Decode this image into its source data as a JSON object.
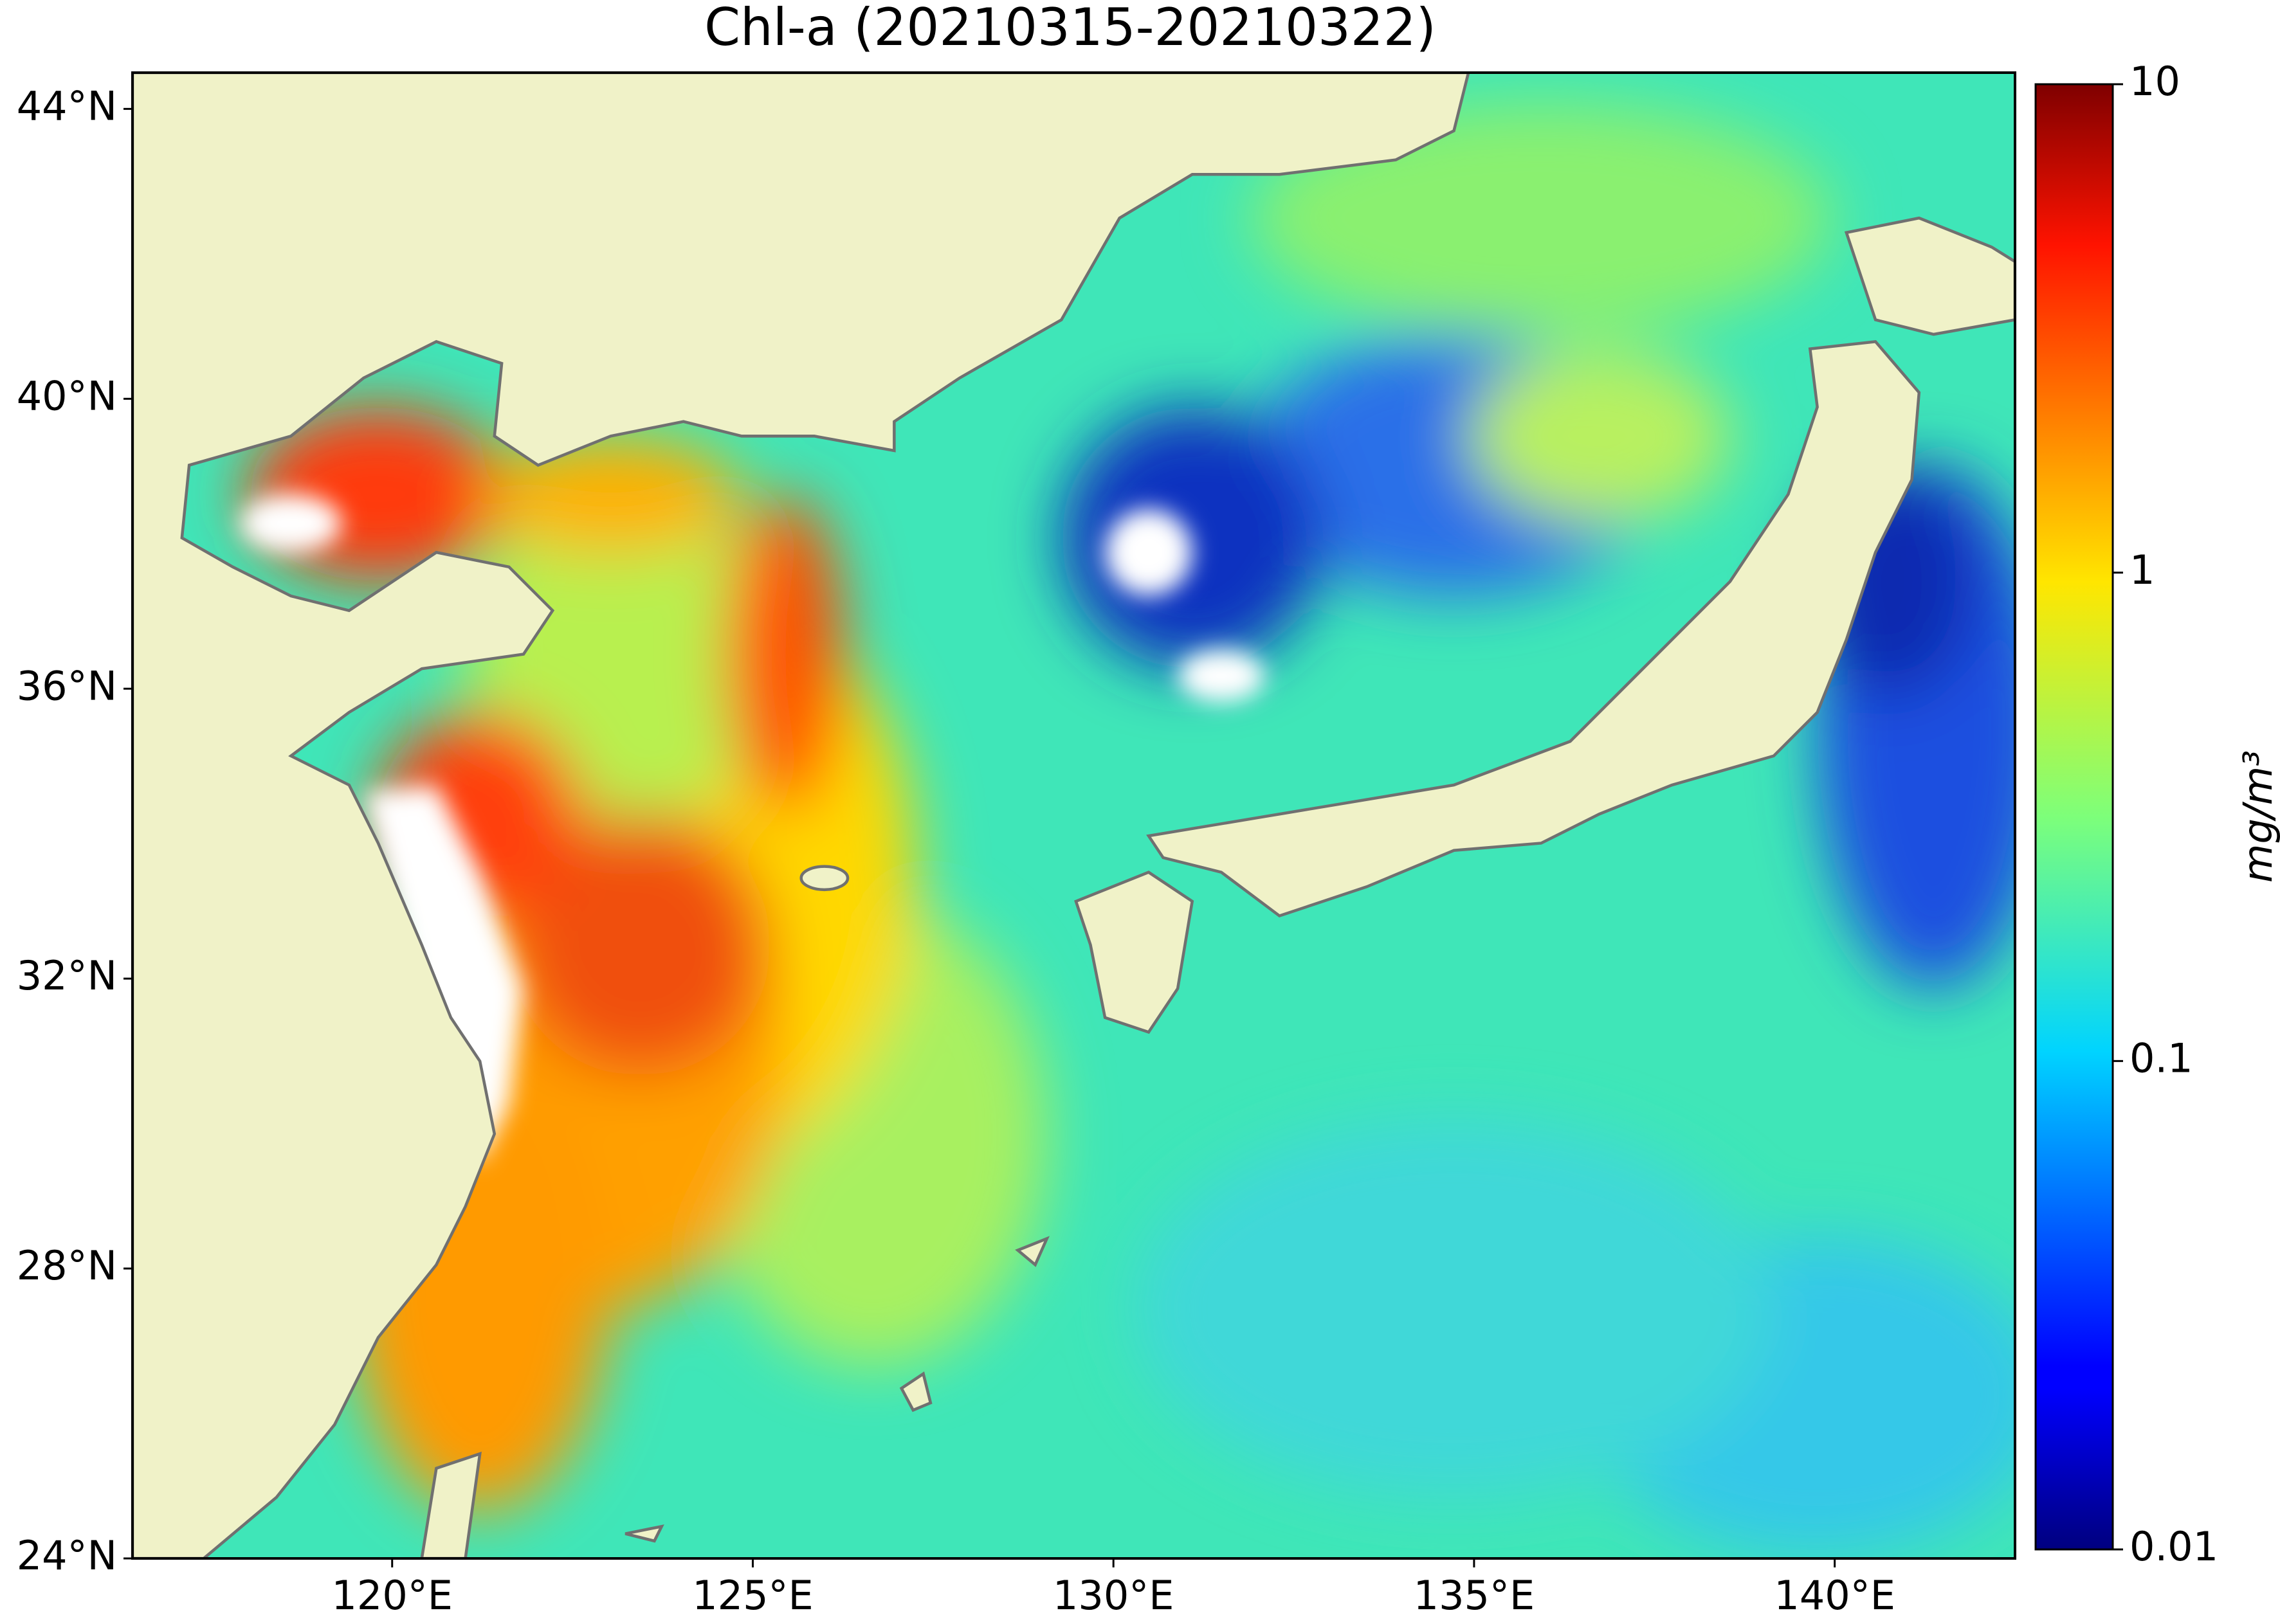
{
  "map": {
    "title": "Chl-a (20210315-20210322)",
    "xlim": [
      116.4,
      142.5
    ],
    "ylim": [
      24,
      44.5
    ],
    "xticks": [
      {
        "value": 120,
        "label": "120°E"
      },
      {
        "value": 125,
        "label": "125°E"
      },
      {
        "value": 130,
        "label": "130°E"
      },
      {
        "value": 135,
        "label": "135°E"
      },
      {
        "value": 140,
        "label": "140°E"
      }
    ],
    "yticks": [
      {
        "value": 24,
        "label": "24°N"
      },
      {
        "value": 28,
        "label": "28°N"
      },
      {
        "value": 32,
        "label": "32°N"
      },
      {
        "value": 36,
        "label": "36°N"
      },
      {
        "value": 40,
        "label": "40°N"
      },
      {
        "value": 44,
        "label": "44°N"
      }
    ],
    "colorbar": {
      "label": "mg/m³",
      "scale": "log",
      "lim": [
        0.01,
        10
      ],
      "ticks": [
        0.01,
        0.1,
        1,
        10
      ]
    }
  }
}
